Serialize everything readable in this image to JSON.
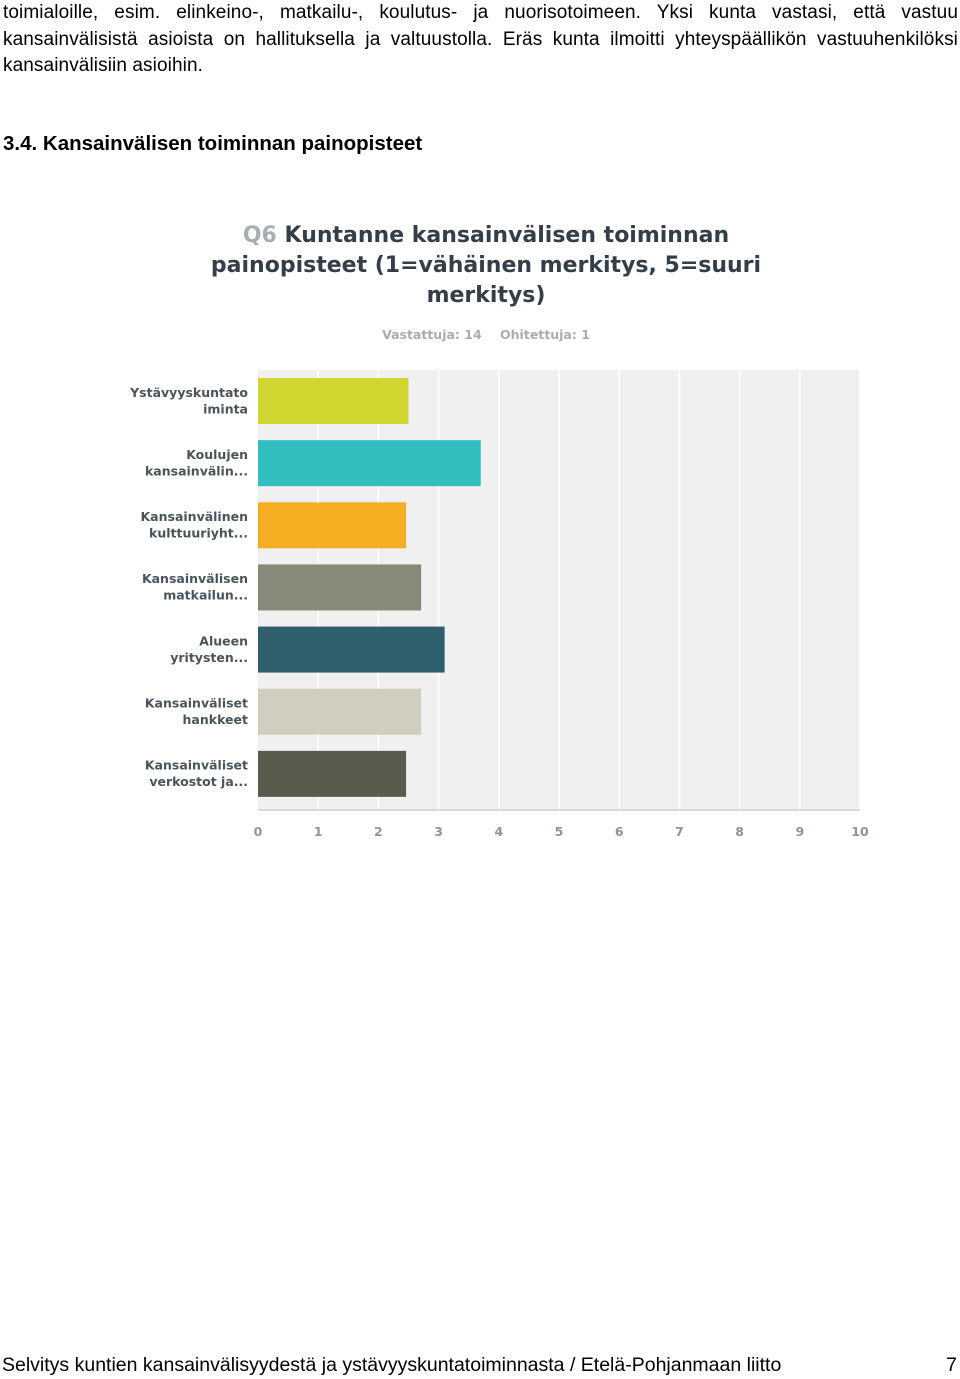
{
  "intro_text": "toimialoille, esim. elinkeino-, matkailu-, koulutus- ja nuorisotoimeen. Yksi kunta vastasi, että vastuu kansainvälisistä asioista on hallituksella ja valtuustolla. Eräs kunta ilmoitti yhteyspäällikön vastuuhenkilöksi kansainvälisiin asioihin.",
  "section_heading": "3.4. Kansainvälisen toiminnan painopisteet",
  "chart": {
    "question_number": "Q6",
    "title_lines": [
      "Kuntanne kansainvälisen toiminnan",
      "painopisteet (1=vähäinen merkitys, 5=suuri",
      "merkitys)"
    ],
    "answered": "Vastattuja: 14",
    "skipped": "Ohitettuja: 1"
  },
  "chart_data": {
    "type": "bar",
    "orientation": "horizontal",
    "categories": [
      [
        "Ystävyyskuntato",
        "iminta"
      ],
      [
        "Koulujen",
        "kansainvälin..."
      ],
      [
        "Kansainvälinen",
        "kulttuuriyht..."
      ],
      [
        "Kansainvälisen",
        "matkailun..."
      ],
      [
        "Alueen",
        "yritysten..."
      ],
      [
        "Kansainväliset",
        "hankkeet"
      ],
      [
        "Kansainväliset",
        "verkostot ja..."
      ]
    ],
    "values": [
      2.5,
      3.7,
      2.46,
      2.71,
      3.1,
      2.71,
      2.46
    ],
    "colors": [
      "#cfd62f",
      "#32bdbf",
      "#f5ae21",
      "#878a78",
      "#2f5f6d",
      "#cfcebf",
      "#5a5b4d"
    ],
    "xlim": [
      0,
      10
    ],
    "xticks": [
      "0",
      "1",
      "2",
      "3",
      "4",
      "5",
      "6",
      "7",
      "8",
      "9",
      "10"
    ],
    "grid": true
  },
  "footer": {
    "title": "Selvitys kuntien kansainvälisyydestä ja ystävyyskuntatoiminnasta / Etelä-Pohjanmaan liitto",
    "page_number": "7"
  }
}
